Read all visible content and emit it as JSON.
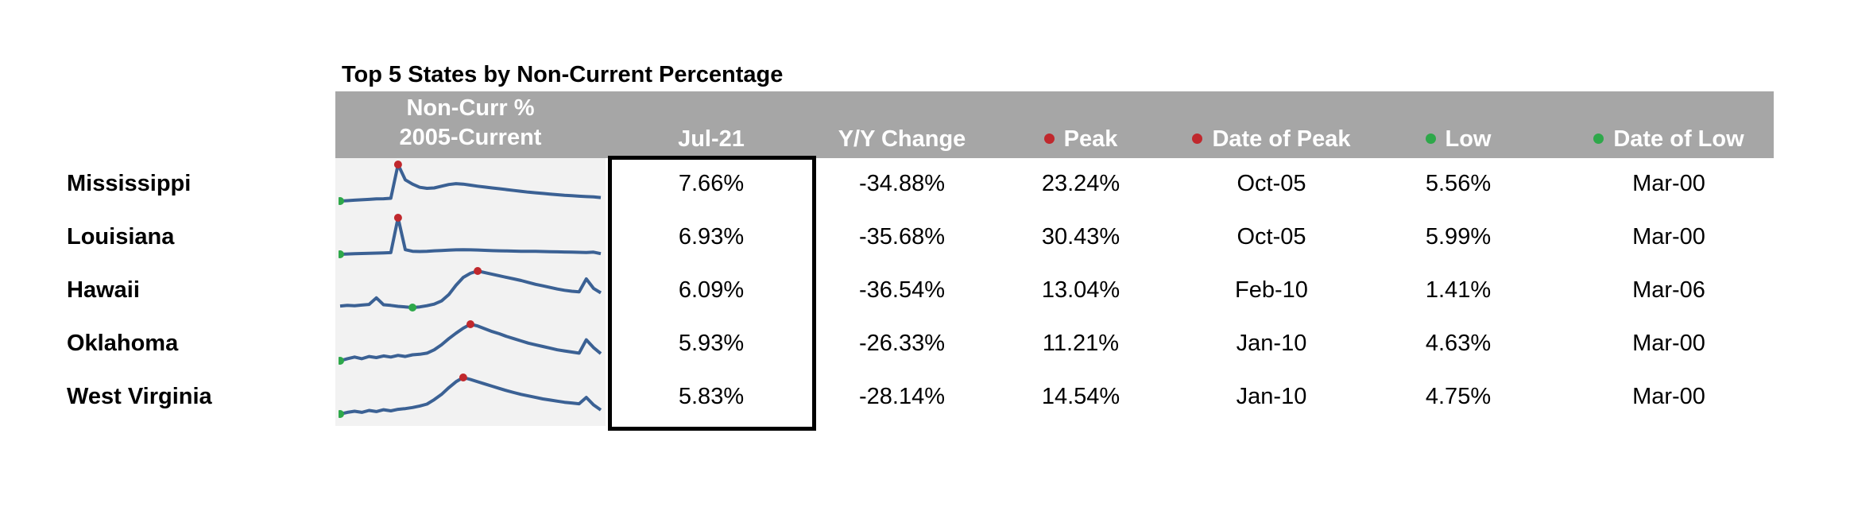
{
  "chart_data": {
    "type": "table",
    "title": "Top 5 States by Non-Current Percentage",
    "columns": {
      "spark": [
        "Non-Curr %",
        "2005-Current"
      ],
      "current": "Jul-21",
      "yoy": "Y/Y Change",
      "peak": "Peak",
      "peak_date": "Date of Peak",
      "low": "Low",
      "low_date": "Date of Low"
    },
    "colors": {
      "header_bg": "#a6a6a6",
      "spark_line": "#3b6194",
      "peak_dot": "#c0282d",
      "low_dot": "#2ea84a"
    },
    "rows": [
      {
        "state": "Mississippi",
        "current": "7.66%",
        "yoy": "-34.88%",
        "peak": "23.24%",
        "peak_date": "Oct-05",
        "low": "5.56%",
        "low_date": "Mar-00"
      },
      {
        "state": "Louisiana",
        "current": "6.93%",
        "yoy": "-35.68%",
        "peak": "30.43%",
        "peak_date": "Oct-05",
        "low": "5.99%",
        "low_date": "Mar-00"
      },
      {
        "state": "Hawaii",
        "current": "6.09%",
        "yoy": "-36.54%",
        "peak": "13.04%",
        "peak_date": "Feb-10",
        "low": "1.41%",
        "low_date": "Mar-06"
      },
      {
        "state": "Oklahoma",
        "current": "5.93%",
        "yoy": "-26.33%",
        "peak": "11.21%",
        "peak_date": "Jan-10",
        "low": "4.63%",
        "low_date": "Mar-00"
      },
      {
        "state": "West Virginia",
        "current": "5.83%",
        "yoy": "-28.14%",
        "peak": "14.54%",
        "peak_date": "Jan-10",
        "low": "4.75%",
        "low_date": "Mar-00"
      }
    ],
    "sparklines": [
      [
        6.0,
        6.2,
        6.4,
        6.6,
        6.8,
        7.0,
        7.1,
        7.3,
        23.24,
        16.0,
        14.0,
        12.5,
        12.0,
        12.2,
        13.0,
        13.8,
        14.2,
        14.0,
        13.5,
        13.0,
        12.6,
        12.2,
        11.8,
        11.4,
        11.0,
        10.6,
        10.2,
        9.9,
        9.6,
        9.3,
        9.0,
        8.7,
        8.5,
        8.3,
        8.1,
        8.0,
        7.66
      ],
      [
        6.5,
        6.7,
        6.9,
        7.0,
        7.2,
        7.3,
        7.4,
        7.6,
        30.43,
        9.5,
        8.5,
        8.3,
        8.5,
        8.8,
        9.0,
        9.2,
        9.4,
        9.5,
        9.4,
        9.3,
        9.1,
        8.9,
        8.8,
        8.7,
        8.6,
        8.5,
        8.5,
        8.4,
        8.3,
        8.2,
        8.1,
        8.0,
        7.9,
        7.8,
        7.7,
        7.9,
        6.93
      ],
      [
        1.9,
        2.1,
        2.0,
        2.2,
        2.4,
        4.5,
        2.3,
        2.1,
        1.8,
        1.6,
        1.41,
        1.6,
        2.0,
        2.5,
        3.5,
        5.5,
        8.5,
        11.0,
        12.3,
        13.04,
        12.5,
        12.0,
        11.5,
        11.0,
        10.5,
        10.0,
        9.4,
        8.8,
        8.3,
        7.8,
        7.3,
        6.9,
        6.6,
        6.4,
        10.5,
        7.5,
        6.09
      ],
      [
        4.63,
        5.0,
        5.3,
        5.0,
        5.4,
        5.2,
        5.5,
        5.3,
        5.6,
        5.4,
        5.7,
        5.8,
        6.0,
        6.6,
        7.5,
        8.6,
        9.6,
        10.5,
        11.21,
        10.9,
        10.4,
        9.9,
        9.5,
        9.0,
        8.6,
        8.2,
        7.8,
        7.5,
        7.2,
        6.9,
        6.6,
        6.4,
        6.2,
        6.0,
        8.4,
        7.0,
        5.93
      ],
      [
        4.75,
        5.2,
        5.5,
        5.2,
        5.7,
        5.4,
        5.9,
        5.6,
        6.0,
        6.2,
        6.5,
        6.9,
        7.4,
        8.6,
        10.0,
        11.8,
        13.4,
        14.54,
        14.0,
        13.4,
        12.8,
        12.2,
        11.6,
        11.0,
        10.5,
        10.0,
        9.6,
        9.2,
        8.8,
        8.5,
        8.2,
        7.9,
        7.7,
        7.5,
        9.2,
        7.2,
        5.83
      ]
    ]
  }
}
